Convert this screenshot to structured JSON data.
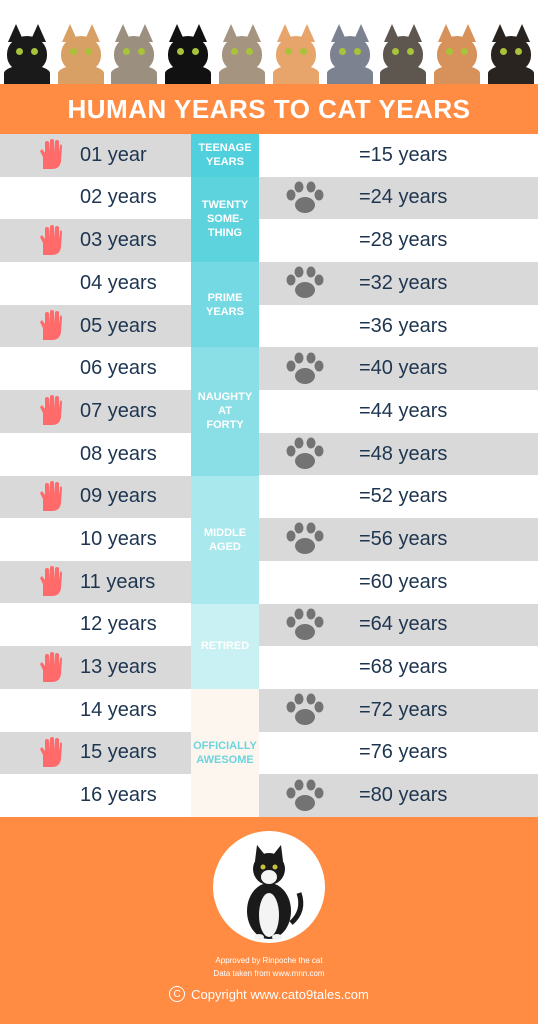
{
  "title": "HUMAN YEARS TO CAT YEARS",
  "rows": [
    {
      "human": "01 year",
      "cat": "=15 years"
    },
    {
      "human": "02 years",
      "cat": "=24 years"
    },
    {
      "human": "03 years",
      "cat": "=28 years"
    },
    {
      "human": "04 years",
      "cat": "=32 years"
    },
    {
      "human": "05 years",
      "cat": "=36 years"
    },
    {
      "human": "06 years",
      "cat": "=40 years"
    },
    {
      "human": "07 years",
      "cat": "=44 years"
    },
    {
      "human": "08 years",
      "cat": "=48 years"
    },
    {
      "human": "09 years",
      "cat": "=52 years"
    },
    {
      "human": "10 years",
      "cat": "=56 years"
    },
    {
      "human": "11 years",
      "cat": "=60 years"
    },
    {
      "human": "12 years",
      "cat": "=64 years"
    },
    {
      "human": "13 years",
      "cat": "=68 years"
    },
    {
      "human": "14 years",
      "cat": "=72 years"
    },
    {
      "human": "15 years",
      "cat": "=76 years"
    },
    {
      "human": "16 years",
      "cat": "=80 years"
    }
  ],
  "stages": [
    {
      "label": "TEENAGE\nYEARS",
      "color": "#4fd0dc"
    },
    {
      "label": "TWENTY\nSOME-\nTHING",
      "color": "#5dd3dd"
    },
    {
      "label": "PRIME\nYEARS",
      "color": "#74d9e2"
    },
    {
      "label": "NAUGHTY\nAT\nFORTY",
      "color": "#8adfe6"
    },
    {
      "label": "MIDDLE\nAGED",
      "color": "#a9e8ed"
    },
    {
      "label": "RETIRED",
      "color": "#c9f0f3"
    },
    {
      "label": "OFFICIALLY\nAWESOME",
      "color": "#fdf6ee"
    }
  ],
  "stage_text_color_last": "#6dd3de",
  "footer": {
    "approved": "Approved by Rinpoche the cat",
    "source": "Data taken from www.mnn.com",
    "copyright": "Copyright www.cato9tales.com"
  },
  "colors": {
    "background": "#ff8c42",
    "hand": "#ff6b6b",
    "paw": "#737373",
    "text": "#1e3550",
    "row_grey": "#d9d9d9"
  },
  "cat_colors": [
    "#1a1a1a",
    "#d9a066",
    "#9b8f80",
    "#111111",
    "#a59480",
    "#e7a46b",
    "#7d8290",
    "#5d5750",
    "#d6925a",
    "#2a2420"
  ]
}
